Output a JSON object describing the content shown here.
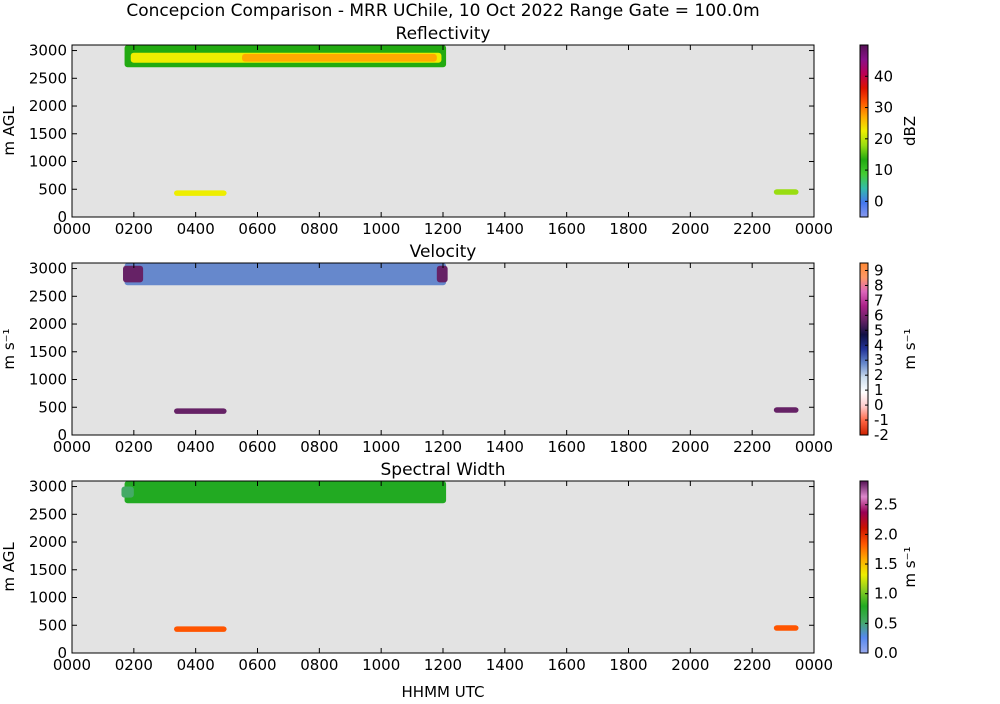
{
  "figure": {
    "title": "Concepcion Comparison - MRR UChile, 10 Oct 2022 Range Gate = 100.0m",
    "xlabel": "HHMM UTC"
  },
  "chart_data": [
    {
      "type": "heatmap",
      "title": "Reflectivity",
      "ylabel": "m AGL",
      "xlim": [
        0,
        24
      ],
      "ylim": [
        0,
        3100
      ],
      "x_tick_labels": [
        "0000",
        "0200",
        "0400",
        "0600",
        "0800",
        "1000",
        "1200",
        "1400",
        "1600",
        "1800",
        "2000",
        "2200",
        "0000"
      ],
      "y_ticks": [
        0,
        500,
        1000,
        1500,
        2000,
        2500,
        3000
      ],
      "colorbar": {
        "label": "dBZ",
        "min": -5,
        "max": 50,
        "ticks": [
          0,
          10,
          20,
          30,
          40
        ],
        "stops": [
          "#8899ee",
          "#4477ee",
          "#33bbaa",
          "#44cc33",
          "#22aa11",
          "#99dd11",
          "#eeee00",
          "#ffaa00",
          "#ff5500",
          "#dd1100",
          "#bb0055",
          "#881188",
          "#551155"
        ]
      },
      "regions": [
        {
          "t0": 1.7,
          "t1": 12.1,
          "z0": 2700,
          "z1": 3100,
          "value": 12
        },
        {
          "t0": 1.9,
          "t1": 11.95,
          "z0": 2780,
          "z1": 2960,
          "value": 22
        },
        {
          "t0": 5.5,
          "t1": 11.8,
          "z0": 2800,
          "z1": 2940,
          "value": 28
        },
        {
          "t0": 3.3,
          "t1": 5.0,
          "z0": 380,
          "z1": 480,
          "value": 22
        },
        {
          "t0": 22.7,
          "t1": 23.5,
          "z0": 400,
          "z1": 500,
          "value": 20
        }
      ]
    },
    {
      "type": "heatmap",
      "title": "Velocity",
      "ylabel": "m s⁻¹",
      "xlim": [
        0,
        24
      ],
      "ylim": [
        0,
        3100
      ],
      "x_tick_labels": [
        "0000",
        "0200",
        "0400",
        "0600",
        "0800",
        "1000",
        "1200",
        "1400",
        "1600",
        "1800",
        "2000",
        "2200",
        "0000"
      ],
      "y_ticks": [
        0,
        500,
        1000,
        1500,
        2000,
        2500,
        3000
      ],
      "colorbar": {
        "label": "m s⁻¹",
        "min": -2,
        "max": 9.5,
        "ticks": [
          9,
          8,
          7,
          6,
          5,
          4,
          3,
          2,
          1,
          0,
          -1,
          -2
        ],
        "stops": [
          "#cc2200",
          "#ff6644",
          "#ffcccc",
          "#ffffff",
          "#ccddee",
          "#6688cc",
          "#223399",
          "#111144",
          "#662266",
          "#aa2288",
          "#dd66bb",
          "#ff9966",
          "#ff8833"
        ]
      },
      "regions": [
        {
          "t0": 1.7,
          "t1": 12.1,
          "z0": 2700,
          "z1": 3100,
          "value": 3.2
        },
        {
          "t0": 1.65,
          "t1": 2.3,
          "z0": 2750,
          "z1": 3050,
          "value": 5.5
        },
        {
          "t0": 11.8,
          "t1": 12.15,
          "z0": 2750,
          "z1": 3050,
          "value": 6
        },
        {
          "t0": 3.3,
          "t1": 5.0,
          "z0": 380,
          "z1": 480,
          "value": 6
        },
        {
          "t0": 22.7,
          "t1": 23.5,
          "z0": 400,
          "z1": 500,
          "value": 5.5
        }
      ]
    },
    {
      "type": "heatmap",
      "title": "Spectral Width",
      "ylabel": "m AGL",
      "xlim": [
        0,
        24
      ],
      "ylim": [
        0,
        3100
      ],
      "x_tick_labels": [
        "0000",
        "0200",
        "0400",
        "0600",
        "0800",
        "1000",
        "1200",
        "1400",
        "1600",
        "1800",
        "2000",
        "2200",
        "0000"
      ],
      "y_ticks": [
        0,
        500,
        1000,
        1500,
        2000,
        2500,
        3000
      ],
      "colorbar": {
        "label": "m s⁻¹",
        "min": 0,
        "max": 2.9,
        "ticks": [
          0.0,
          0.5,
          1.0,
          1.5,
          2.0,
          2.5
        ],
        "stops": [
          "#99aaee",
          "#5588ee",
          "#44aa66",
          "#22aa22",
          "#88cc22",
          "#eeee00",
          "#ffaa00",
          "#ff5500",
          "#cc1100",
          "#990055",
          "#dd88cc",
          "#551155"
        ]
      },
      "regions": [
        {
          "t0": 1.7,
          "t1": 12.1,
          "z0": 2700,
          "z1": 3100,
          "value": 0.85
        },
        {
          "t0": 1.6,
          "t1": 2.0,
          "z0": 2800,
          "z1": 3000,
          "value": 0.45
        },
        {
          "t0": 3.3,
          "t1": 5.0,
          "z0": 380,
          "z1": 480,
          "value": 1.9
        },
        {
          "t0": 22.7,
          "t1": 23.5,
          "z0": 400,
          "z1": 500,
          "value": 1.9
        }
      ]
    }
  ]
}
